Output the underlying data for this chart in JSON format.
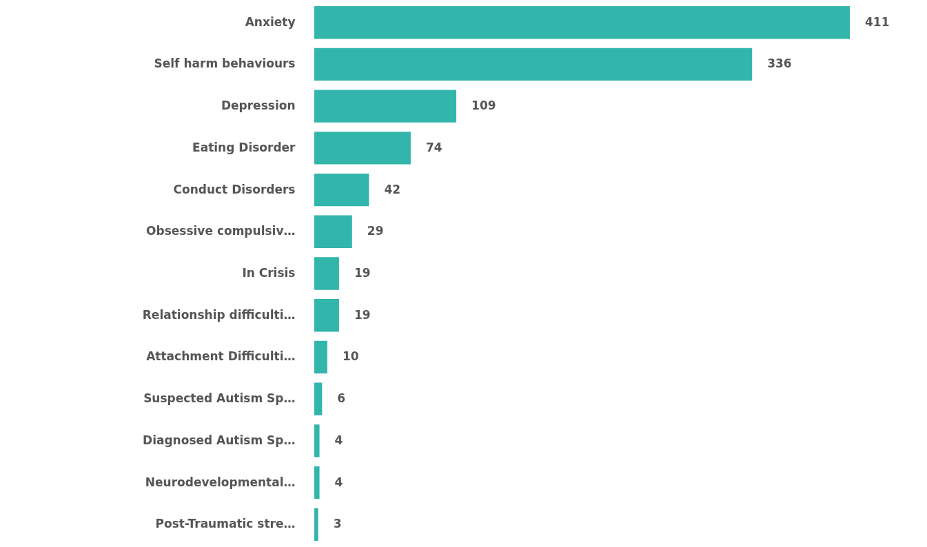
{
  "chart_data": {
    "type": "bar",
    "orientation": "horizontal",
    "data_labels": true,
    "color": "#32b5ab",
    "categories": [
      "Anxiety",
      "Self harm behaviours",
      "Depression",
      "Eating Disorder",
      "Conduct Disorders",
      "Obsessive compulsiv…",
      "In Crisis",
      "Relationship difficulti…",
      "Attachment Difficulti…",
      "Suspected Autism Sp…",
      "Diagnosed Autism Sp…",
      "Neurodevelopmental…",
      "Post-Traumatic stre…"
    ],
    "values": [
      411,
      336,
      109,
      74,
      42,
      29,
      19,
      19,
      10,
      6,
      4,
      4,
      3
    ]
  }
}
